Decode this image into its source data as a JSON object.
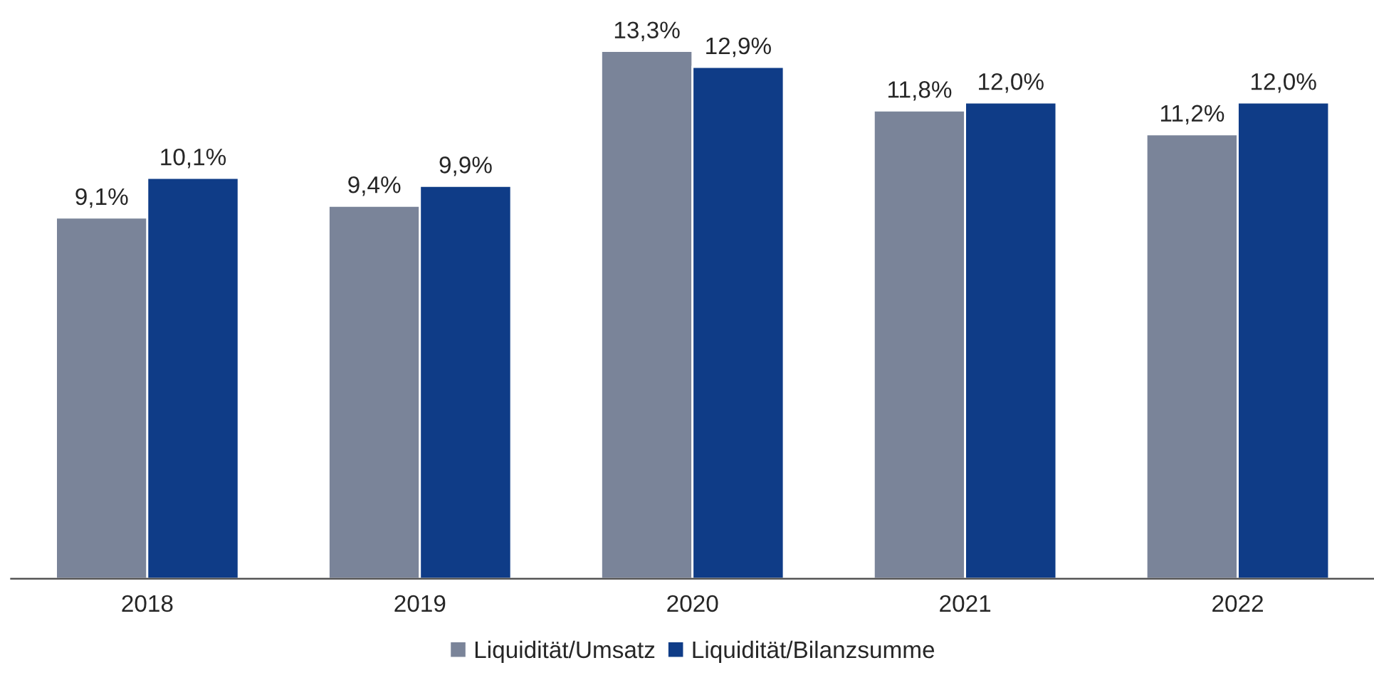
{
  "chart_data": {
    "type": "bar",
    "categories": [
      "2018",
      "2019",
      "2020",
      "2021",
      "2022"
    ],
    "series": [
      {
        "name": "Liquidität/Umsatz",
        "color": "#7a8499",
        "values": [
          9.1,
          9.4,
          13.3,
          11.8,
          11.2
        ],
        "value_labels": [
          "9,1%",
          "9,4%",
          "13,3%",
          "11,8%",
          "11,2%"
        ]
      },
      {
        "name": "Liquidität/Bilanzsumme",
        "color": "#0f3c87",
        "values": [
          10.1,
          9.9,
          12.9,
          12.0,
          12.0
        ],
        "value_labels": [
          "10,1%",
          "9,9%",
          "12,9%",
          "12,0%",
          "12,0%"
        ]
      }
    ],
    "tick_labels": "x",
    "grid": false,
    "legend": "bottom"
  }
}
